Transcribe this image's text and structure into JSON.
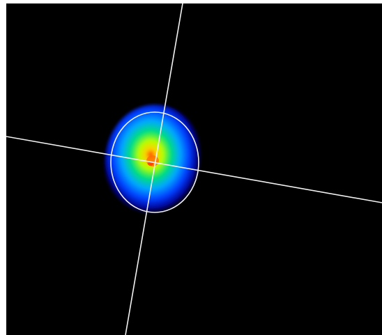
{
  "profile": {
    "colors": {
      "background": "#000000",
      "frame": "#ffffff",
      "overlay": "#f2f2f2",
      "peak": "#ff3a00",
      "high": "#ffd000",
      "mid_high": "#b8ff00",
      "mid": "#00e07a",
      "mid_low": "#00a8ff",
      "low": "#0040ff",
      "edge": "#0008a0"
    },
    "overlay": {
      "crosshair": "crosshair-lines",
      "ellipse": "beam-width-ellipse"
    }
  }
}
